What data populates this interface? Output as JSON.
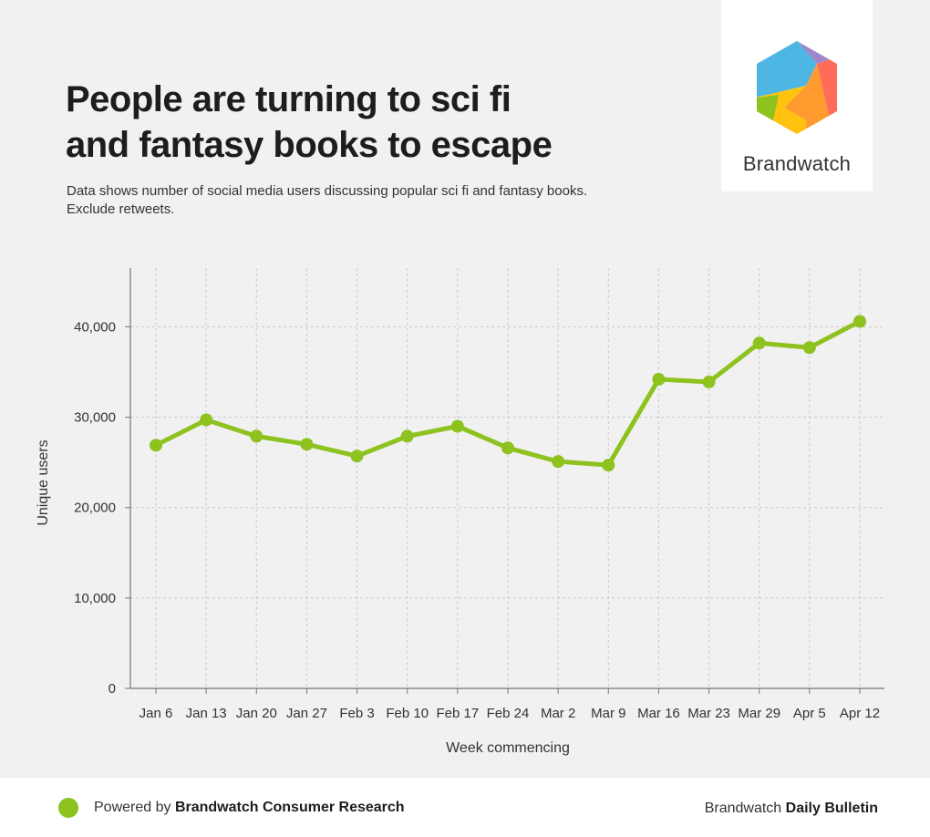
{
  "header": {
    "title_lines": [
      "People are turning to sci fi",
      "and fantasy books to escape"
    ],
    "subtitle_lines": [
      "Data shows number of social media users discussing popular sci fi and fantasy books.",
      "Exclude retweets."
    ]
  },
  "logo": {
    "text": "Brandwatch",
    "colors": [
      "#4db6e2",
      "#9e86c8",
      "#ff6d5a",
      "#ff9a2e",
      "#ffc20e",
      "#8dc21f"
    ]
  },
  "chart_data": {
    "type": "line",
    "title": "People are turning to sci fi and fantasy books to escape",
    "xlabel": "Week commencing",
    "ylabel": "Unique users",
    "categories": [
      "Jan 6",
      "Jan 13",
      "Jan 20",
      "Jan 27",
      "Feb 3",
      "Feb 10",
      "Feb 17",
      "Feb 24",
      "Mar 2",
      "Mar 9",
      "Mar 16",
      "Mar 23",
      "Mar 29",
      "Apr 5",
      "Apr 12"
    ],
    "series": [
      {
        "values": [
          26900,
          29700,
          27900,
          27000,
          25700,
          27900,
          29000,
          26600,
          25100,
          24700,
          34200,
          33900,
          38200,
          37700,
          40600
        ],
        "color": "#8dc21f"
      }
    ],
    "yticks": [
      0,
      10000,
      20000,
      30000,
      40000
    ],
    "ytick_labels": [
      "0",
      "10,000",
      "20,000",
      "30,000",
      "40,000"
    ],
    "ylim": [
      0,
      46500
    ],
    "grid": true,
    "legend": "none"
  },
  "footer": {
    "left_prefix": "Powered by ",
    "left_bold": "Brandwatch Consumer Research",
    "right_prefix": "Brandwatch ",
    "right_bold": "Daily Bulletin"
  }
}
